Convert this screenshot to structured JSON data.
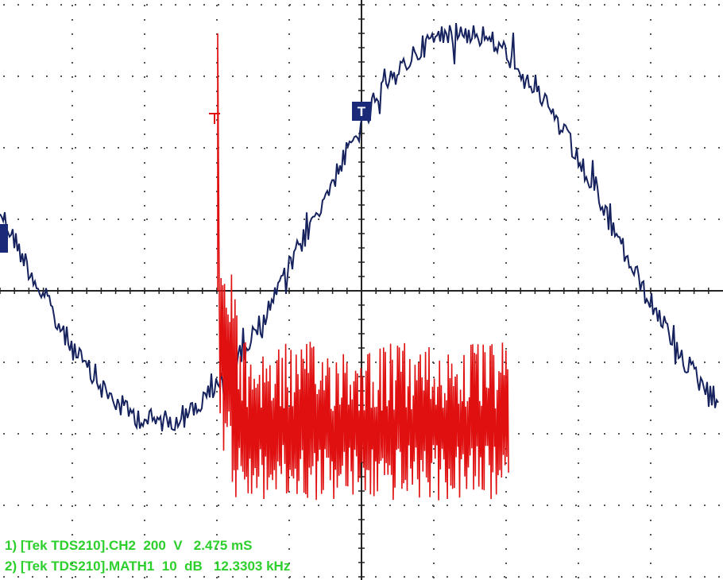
{
  "screen": {
    "trigger_marker": "T",
    "status_lines": [
      "1) [Tek TDS210].CH2  200  V   2.475 mS",
      "2) [Tek TDS210].MATH1  10  dB   12.3303 kHz"
    ]
  }
}
